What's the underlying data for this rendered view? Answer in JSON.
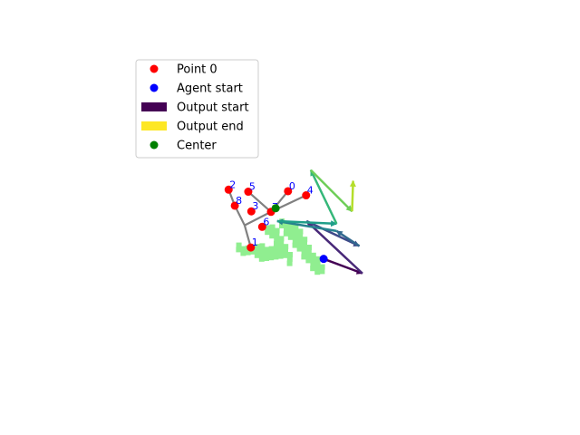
{
  "chart_data": {
    "type": "scatter",
    "title": "",
    "xlabel": "",
    "ylabel": "",
    "axes_visible": false,
    "grid": false,
    "legend_placement": "upper-left",
    "legend": [
      {
        "label": "Point 0",
        "kind": "marker",
        "color": "#ff0000"
      },
      {
        "label": "Agent start",
        "kind": "marker",
        "color": "#0000ff"
      },
      {
        "label": "Output start",
        "kind": "patch",
        "color": "#440154"
      },
      {
        "label": "Output end",
        "kind": "patch",
        "color": "#fde725"
      },
      {
        "label": "Center",
        "kind": "marker",
        "color": "#008000"
      }
    ],
    "region_color": "#90ee90",
    "region_cells": [
      [
        9,
        -1
      ],
      [
        9,
        0
      ],
      [
        10,
        -1
      ],
      [
        10,
        0
      ],
      [
        10,
        1
      ],
      [
        11,
        -2
      ],
      [
        11,
        -1
      ],
      [
        11,
        0
      ],
      [
        11,
        1
      ],
      [
        12,
        -2
      ],
      [
        12,
        -1
      ],
      [
        12,
        0
      ],
      [
        12,
        1
      ],
      [
        12,
        2
      ],
      [
        13,
        -2
      ],
      [
        13,
        -1
      ],
      [
        13,
        0
      ],
      [
        13,
        1
      ],
      [
        13,
        2
      ],
      [
        14,
        -1
      ],
      [
        14,
        0
      ],
      [
        14,
        1
      ],
      [
        14,
        2
      ],
      [
        14,
        3
      ],
      [
        15,
        0
      ],
      [
        15,
        1
      ],
      [
        15,
        2
      ],
      [
        15,
        3
      ],
      [
        16,
        1
      ],
      [
        16,
        2
      ],
      [
        16,
        3
      ],
      [
        16,
        4
      ],
      [
        17,
        1
      ],
      [
        17,
        2
      ],
      [
        17,
        3
      ],
      [
        17,
        4
      ],
      [
        18,
        2
      ],
      [
        18,
        3
      ],
      [
        6,
        3
      ],
      [
        6,
        4
      ],
      [
        7,
        2
      ],
      [
        7,
        3
      ],
      [
        7,
        4
      ],
      [
        8,
        2
      ],
      [
        8,
        3
      ],
      [
        8,
        4
      ],
      [
        8,
        5
      ],
      [
        9,
        3
      ],
      [
        9,
        4
      ],
      [
        9,
        5
      ],
      [
        10,
        4
      ],
      [
        10,
        5
      ],
      [
        10,
        6
      ],
      [
        11,
        5
      ],
      [
        11,
        6
      ],
      [
        11,
        7
      ],
      [
        3,
        10
      ],
      [
        3,
        11
      ],
      [
        4,
        9
      ],
      [
        4,
        10
      ],
      [
        4,
        11
      ],
      [
        5,
        8
      ],
      [
        5,
        9
      ],
      [
        5,
        10
      ],
      [
        5,
        11
      ],
      [
        6,
        8
      ],
      [
        6,
        9
      ],
      [
        6,
        10
      ],
      [
        7,
        7
      ],
      [
        7,
        8
      ],
      [
        7,
        9
      ],
      [
        8,
        6
      ],
      [
        8,
        7
      ],
      [
        8,
        8
      ],
      [
        9,
        6
      ],
      [
        9,
        7
      ],
      [
        1,
        12
      ],
      [
        2,
        11
      ],
      [
        2,
        12
      ],
      [
        0,
        12
      ],
      [
        0,
        13
      ],
      [
        1,
        13
      ]
    ],
    "points": [
      {
        "id": "0",
        "x": 12.6,
        "y": 1.4
      },
      {
        "id": "1",
        "x": 5.4,
        "y": 12.3
      },
      {
        "id": "2",
        "x": 1.1,
        "y": 1.1
      },
      {
        "id": "3",
        "x": 5.5,
        "y": 5.3
      },
      {
        "id": "4",
        "x": 16.1,
        "y": 2.2
      },
      {
        "id": "5",
        "x": 4.9,
        "y": 1.5
      },
      {
        "id": "6",
        "x": 7.6,
        "y": 8.3
      },
      {
        "id": "7",
        "x": 9.3,
        "y": 5.4
      },
      {
        "id": "8",
        "x": 2.3,
        "y": 4.2
      }
    ],
    "center": {
      "x": 10.2,
      "y": 4.7
    },
    "agent_start": {
      "x": 19.5,
      "y": 14.5
    },
    "connections": [
      {
        "from": [
          5.4,
          12.3
        ],
        "to": [
          4.2,
          8.0
        ]
      },
      {
        "from": [
          4.2,
          8.0
        ],
        "to": [
          2.3,
          4.2
        ]
      },
      {
        "from": [
          2.3,
          4.2
        ],
        "to": [
          1.1,
          1.1
        ]
      },
      {
        "from": [
          4.2,
          8.0
        ],
        "to": [
          9.3,
          5.4
        ]
      },
      {
        "from": [
          9.3,
          5.4
        ],
        "to": [
          16.1,
          2.2
        ]
      },
      {
        "from": [
          9.3,
          5.4
        ],
        "to": [
          12.6,
          1.4
        ]
      },
      {
        "from": [
          9.3,
          5.4
        ],
        "to": [
          4.9,
          1.5
        ]
      }
    ],
    "output_path": [
      [
        19.5,
        14.5
      ],
      [
        27.0,
        17.3
      ],
      [
        16.2,
        7.2
      ],
      [
        26.4,
        12.0
      ],
      [
        22.0,
        9.1
      ],
      [
        10.5,
        7.2
      ],
      [
        22.0,
        7.7
      ],
      [
        17.0,
        -2.7
      ],
      [
        25.0,
        5.3
      ],
      [
        25.2,
        -0.6
      ]
    ],
    "colormap": [
      "#440154",
      "#482878",
      "#3e4989",
      "#31688e",
      "#26828e",
      "#1f9e89",
      "#35b779",
      "#6ece58",
      "#b5de2b",
      "#fde725"
    ]
  }
}
